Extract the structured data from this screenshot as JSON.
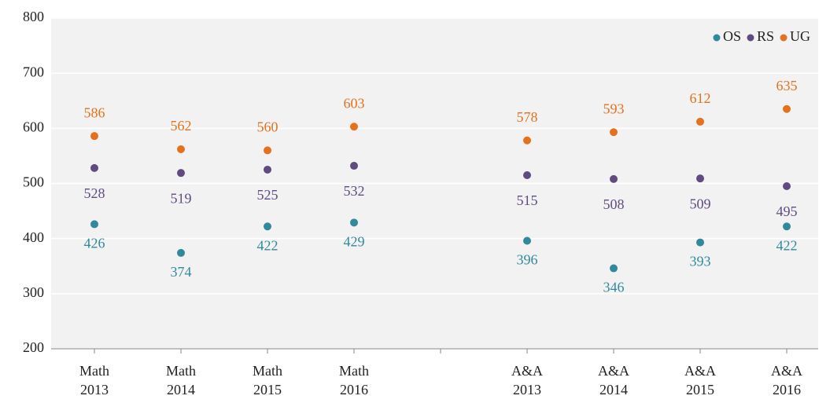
{
  "chart_data": {
    "type": "dot",
    "categories": [
      "Math 2013",
      "Math 2014",
      "Math 2015",
      "Math 2016",
      null,
      "A&A 2013",
      "A&A 2014",
      "A&A 2015",
      "A&A 2016"
    ],
    "series": [
      {
        "name": "OS",
        "color": "#31899c",
        "values": [
          426,
          374,
          422,
          429,
          null,
          396,
          346,
          393,
          422
        ]
      },
      {
        "name": "RS",
        "color": "#5f4b80",
        "values": [
          528,
          519,
          525,
          532,
          null,
          515,
          508,
          509,
          495
        ]
      },
      {
        "name": "UG",
        "color": "#e6711d",
        "values": [
          586,
          562,
          560,
          603,
          null,
          578,
          593,
          612,
          635
        ]
      }
    ],
    "ylim": [
      200,
      800
    ],
    "yticks": [
      200,
      300,
      400,
      500,
      600,
      700,
      800
    ],
    "grid": true,
    "legend": "top-right"
  }
}
